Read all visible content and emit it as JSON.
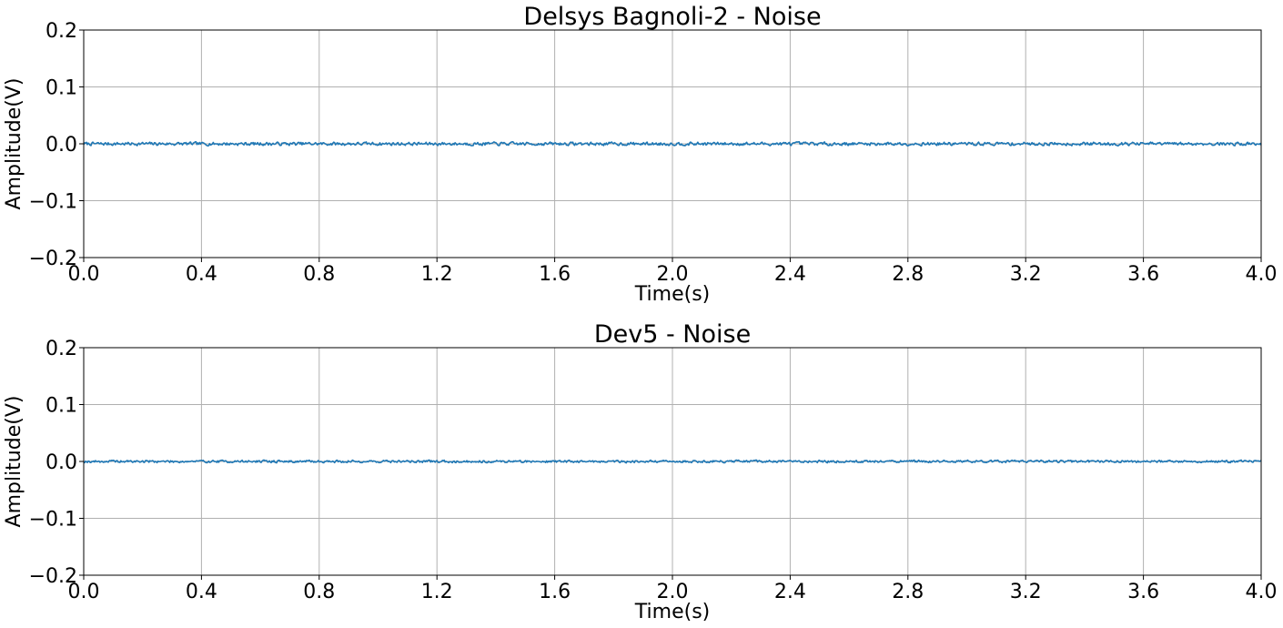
{
  "chart_data": [
    {
      "type": "line",
      "title": "Delsys Bagnoli-2 - Noise",
      "xlabel": "Time(s)",
      "ylabel": "Amplitude(V)",
      "xlim": [
        0.0,
        4.0
      ],
      "ylim": [
        -0.2,
        0.2
      ],
      "xticks": [
        "0.0",
        "0.4",
        "0.8",
        "1.2",
        "1.6",
        "2.0",
        "2.4",
        "2.8",
        "3.2",
        "3.6",
        "4.0"
      ],
      "yticks": [
        "0.2",
        "0.1",
        "0.0",
        "−0.1",
        "−0.2"
      ],
      "grid": true,
      "series": [
        {
          "color": "#1f77b4",
          "x": [
            0.0,
            4.0
          ],
          "y": [
            0.0,
            0.0
          ],
          "noise_amplitude": 0.004
        }
      ]
    },
    {
      "type": "line",
      "title": "Dev5 - Noise",
      "xlabel": "Time(s)",
      "ylabel": "Amplitude(V)",
      "xlim": [
        0.0,
        4.0
      ],
      "ylim": [
        -0.2,
        0.2
      ],
      "xticks": [
        "0.0",
        "0.4",
        "0.8",
        "1.2",
        "1.6",
        "2.0",
        "2.4",
        "2.8",
        "3.2",
        "3.6",
        "4.0"
      ],
      "yticks": [
        "0.2",
        "0.1",
        "0.0",
        "−0.1",
        "−0.2"
      ],
      "grid": true,
      "series": [
        {
          "color": "#1f77b4",
          "x": [
            0.0,
            4.0
          ],
          "y": [
            0.0,
            0.0
          ],
          "noise_amplitude": 0.003
        }
      ]
    }
  ]
}
